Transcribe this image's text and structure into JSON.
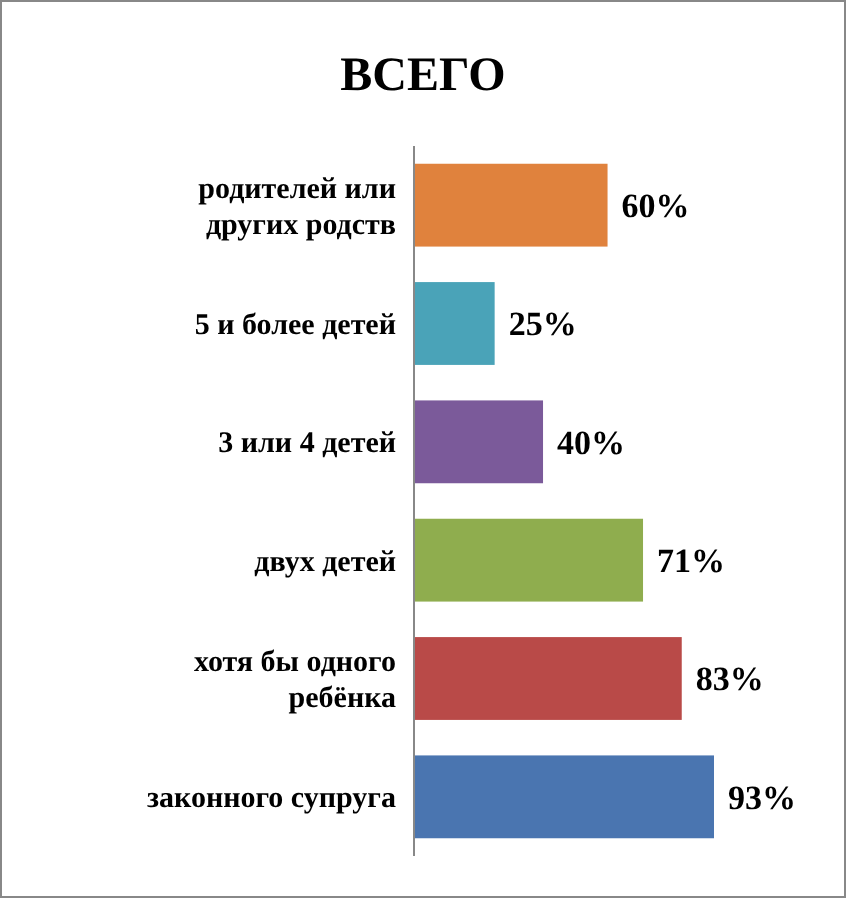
{
  "chart_data": {
    "type": "bar",
    "title": "ВСЕГО",
    "orientation": "horizontal",
    "categories": [
      "родителей или других родств",
      "5 и более детей",
      "3 или 4 детей",
      "двух детей",
      "хотя бы одного ребёнка",
      "законного супруга"
    ],
    "values": [
      60,
      25,
      40,
      71,
      83,
      93
    ],
    "colors": [
      "#e0823d",
      "#4aa3b8",
      "#7b5a9a",
      "#8fad4e",
      "#b94a48",
      "#4a75b0"
    ],
    "value_labels": [
      "60%",
      "25%",
      "40%",
      "71%",
      "83%",
      "93%"
    ]
  }
}
